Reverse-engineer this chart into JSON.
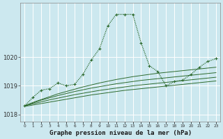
{
  "xlabel": "Graphe pression niveau de la mer (hPa)",
  "background_color": "#cce8ef",
  "grid_color": "#ffffff",
  "line_color": "#2d6a2d",
  "hours": [
    0,
    1,
    2,
    3,
    4,
    5,
    6,
    7,
    8,
    9,
    10,
    11,
    12,
    13,
    14,
    15,
    16,
    17,
    18,
    19,
    20,
    21,
    22,
    23
  ],
  "series_main": [
    1018.3,
    1018.6,
    1018.85,
    1018.9,
    1019.1,
    1019.0,
    1019.05,
    1019.4,
    1019.9,
    1020.3,
    1021.1,
    1021.5,
    1021.5,
    1021.5,
    1020.5,
    1019.7,
    1019.5,
    1019.0,
    1019.15,
    1019.2,
    1019.4,
    1019.65,
    1019.85,
    1019.95
  ],
  "series_trend1": [
    1018.3,
    1018.42,
    1018.52,
    1018.62,
    1018.72,
    1018.8,
    1018.88,
    1018.96,
    1019.03,
    1019.1,
    1019.16,
    1019.22,
    1019.27,
    1019.32,
    1019.36,
    1019.4,
    1019.44,
    1019.47,
    1019.5,
    1019.53,
    1019.56,
    1019.59,
    1019.62,
    1019.65
  ],
  "series_trend2": [
    1018.3,
    1018.4,
    1018.5,
    1018.58,
    1018.66,
    1018.73,
    1018.8,
    1018.86,
    1018.92,
    1018.97,
    1019.02,
    1019.07,
    1019.11,
    1019.15,
    1019.19,
    1019.22,
    1019.25,
    1019.28,
    1019.31,
    1019.34,
    1019.37,
    1019.4,
    1019.43,
    1019.46
  ],
  "series_trend3": [
    1018.3,
    1018.37,
    1018.44,
    1018.51,
    1018.57,
    1018.63,
    1018.69,
    1018.74,
    1018.79,
    1018.84,
    1018.88,
    1018.92,
    1018.96,
    1019.0,
    1019.03,
    1019.06,
    1019.09,
    1019.12,
    1019.15,
    1019.18,
    1019.21,
    1019.24,
    1019.27,
    1019.3
  ],
  "series_trend4": [
    1018.28,
    1018.33,
    1018.38,
    1018.43,
    1018.48,
    1018.53,
    1018.58,
    1018.63,
    1018.68,
    1018.72,
    1018.76,
    1018.8,
    1018.84,
    1018.87,
    1018.9,
    1018.93,
    1018.96,
    1018.99,
    1019.02,
    1019.05,
    1019.08,
    1019.11,
    1019.14,
    1019.17
  ],
  "ylim": [
    1017.75,
    1021.9
  ],
  "yticks": [
    1018,
    1019,
    1020
  ],
  "xlim": [
    -0.5,
    23.5
  ]
}
